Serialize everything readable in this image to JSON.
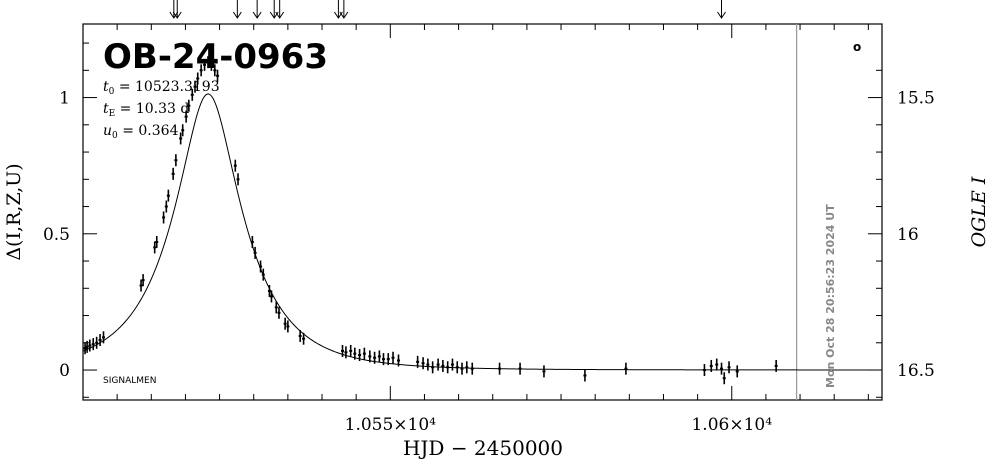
{
  "chart_data": {
    "type": "scatter",
    "title": "OB-24-0963",
    "params": {
      "t0_sym": "t",
      "t0_sub": "0",
      "t0_val": " = 10523.3193",
      "tE_sym": "t",
      "tE_sub": "E",
      "tE_val": " = 10.33 d",
      "u0_sym": "u",
      "u0_sub": "0",
      "u0_val": " = 0.364"
    },
    "corner_label": "SIGNALMEN",
    "marker_symbol": "o",
    "xlabel": "HJD − 2450000",
    "ylabel": "Δ(I,R,Z,U)",
    "y2label": "OGLE I",
    "timestamp": "Mon Oct 28 20:56:23 2024 UT",
    "xlim": [
      10505,
      10622
    ],
    "ylim": [
      -0.11,
      1.27
    ],
    "xticks": [
      {
        "value": 10550,
        "label": "1.055×10⁴"
      },
      {
        "value": 10600,
        "label": "1.06×10⁴"
      }
    ],
    "yticks": [
      {
        "value": 0,
        "label": "0"
      },
      {
        "value": 0.5,
        "label": "0.5"
      },
      {
        "value": 1,
        "label": "1"
      }
    ],
    "y2ticks": [
      {
        "value": 15.5,
        "label": "15.5"
      },
      {
        "value": 16,
        "label": "16"
      },
      {
        "value": 16.5,
        "label": "16.5"
      }
    ],
    "now_hjd": 10609.5,
    "arrow_hjd": [
      10518.3,
      10518.8,
      10527.6,
      10530.5,
      10533.0,
      10533.8,
      10542.4,
      10543.2,
      10598.5
    ],
    "model": {
      "t0": 10523.3193,
      "tE": 10.33,
      "u0": 0.364,
      "f_source": 0.82
    },
    "points": [
      {
        "x": 10505.3,
        "y": 0.08
      },
      {
        "x": 10505.6,
        "y": 0.085
      },
      {
        "x": 10506.0,
        "y": 0.09
      },
      {
        "x": 10506.5,
        "y": 0.095
      },
      {
        "x": 10507.0,
        "y": 0.1
      },
      {
        "x": 10507.5,
        "y": 0.11
      },
      {
        "x": 10508.0,
        "y": 0.12
      },
      {
        "x": 10513.5,
        "y": 0.31
      },
      {
        "x": 10513.8,
        "y": 0.33
      },
      {
        "x": 10515.5,
        "y": 0.45
      },
      {
        "x": 10515.8,
        "y": 0.47
      },
      {
        "x": 10516.8,
        "y": 0.56
      },
      {
        "x": 10517.2,
        "y": 0.6
      },
      {
        "x": 10517.5,
        "y": 0.64
      },
      {
        "x": 10518.2,
        "y": 0.72
      },
      {
        "x": 10518.6,
        "y": 0.77
      },
      {
        "x": 10519.3,
        "y": 0.85
      },
      {
        "x": 10519.6,
        "y": 0.88
      },
      {
        "x": 10520.1,
        "y": 0.93
      },
      {
        "x": 10520.5,
        "y": 0.97
      },
      {
        "x": 10521.0,
        "y": 1.01
      },
      {
        "x": 10521.4,
        "y": 1.04
      },
      {
        "x": 10521.8,
        "y": 1.07
      },
      {
        "x": 10522.3,
        "y": 1.1
      },
      {
        "x": 10522.8,
        "y": 1.12
      },
      {
        "x": 10523.3,
        "y": 1.13
      },
      {
        "x": 10523.8,
        "y": 1.12
      },
      {
        "x": 10524.3,
        "y": 1.1
      },
      {
        "x": 10524.7,
        "y": 1.08
      },
      {
        "x": 10527.3,
        "y": 0.75
      },
      {
        "x": 10527.7,
        "y": 0.7
      },
      {
        "x": 10529.8,
        "y": 0.47
      },
      {
        "x": 10530.2,
        "y": 0.43
      },
      {
        "x": 10531.0,
        "y": 0.38
      },
      {
        "x": 10531.4,
        "y": 0.35
      },
      {
        "x": 10532.3,
        "y": 0.29
      },
      {
        "x": 10532.6,
        "y": 0.27
      },
      {
        "x": 10533.3,
        "y": 0.23
      },
      {
        "x": 10533.7,
        "y": 0.21
      },
      {
        "x": 10534.6,
        "y": 0.17
      },
      {
        "x": 10535.0,
        "y": 0.16
      },
      {
        "x": 10536.8,
        "y": 0.125
      },
      {
        "x": 10537.3,
        "y": 0.115
      },
      {
        "x": 10543.0,
        "y": 0.07
      },
      {
        "x": 10543.5,
        "y": 0.065
      },
      {
        "x": 10544.2,
        "y": 0.07
      },
      {
        "x": 10544.8,
        "y": 0.06
      },
      {
        "x": 10545.5,
        "y": 0.055
      },
      {
        "x": 10546.2,
        "y": 0.06
      },
      {
        "x": 10547.0,
        "y": 0.05
      },
      {
        "x": 10547.7,
        "y": 0.045
      },
      {
        "x": 10548.4,
        "y": 0.05
      },
      {
        "x": 10549.0,
        "y": 0.04
      },
      {
        "x": 10549.7,
        "y": 0.04
      },
      {
        "x": 10550.4,
        "y": 0.045
      },
      {
        "x": 10551.2,
        "y": 0.035
      },
      {
        "x": 10554.0,
        "y": 0.03
      },
      {
        "x": 10554.8,
        "y": 0.025
      },
      {
        "x": 10555.5,
        "y": 0.02
      },
      {
        "x": 10556.2,
        "y": 0.01
      },
      {
        "x": 10557.0,
        "y": 0.02
      },
      {
        "x": 10557.7,
        "y": 0.015
      },
      {
        "x": 10558.4,
        "y": 0.01
      },
      {
        "x": 10559.1,
        "y": 0.02
      },
      {
        "x": 10559.8,
        "y": 0.01
      },
      {
        "x": 10560.5,
        "y": 0.005
      },
      {
        "x": 10561.2,
        "y": 0.01
      },
      {
        "x": 10562.0,
        "y": 0.005
      },
      {
        "x": 10566.0,
        "y": 0.005
      },
      {
        "x": 10569.0,
        "y": 0.005
      },
      {
        "x": 10572.5,
        "y": -0.005
      },
      {
        "x": 10578.5,
        "y": -0.02
      },
      {
        "x": 10584.5,
        "y": 0.005
      },
      {
        "x": 10596.0,
        "y": 0.0
      },
      {
        "x": 10597.0,
        "y": 0.015
      },
      {
        "x": 10597.8,
        "y": 0.02
      },
      {
        "x": 10598.5,
        "y": 0.005
      },
      {
        "x": 10598.9,
        "y": -0.03
      },
      {
        "x": 10599.6,
        "y": 0.01
      },
      {
        "x": 10600.8,
        "y": -0.005
      },
      {
        "x": 10606.5,
        "y": 0.015
      }
    ]
  }
}
